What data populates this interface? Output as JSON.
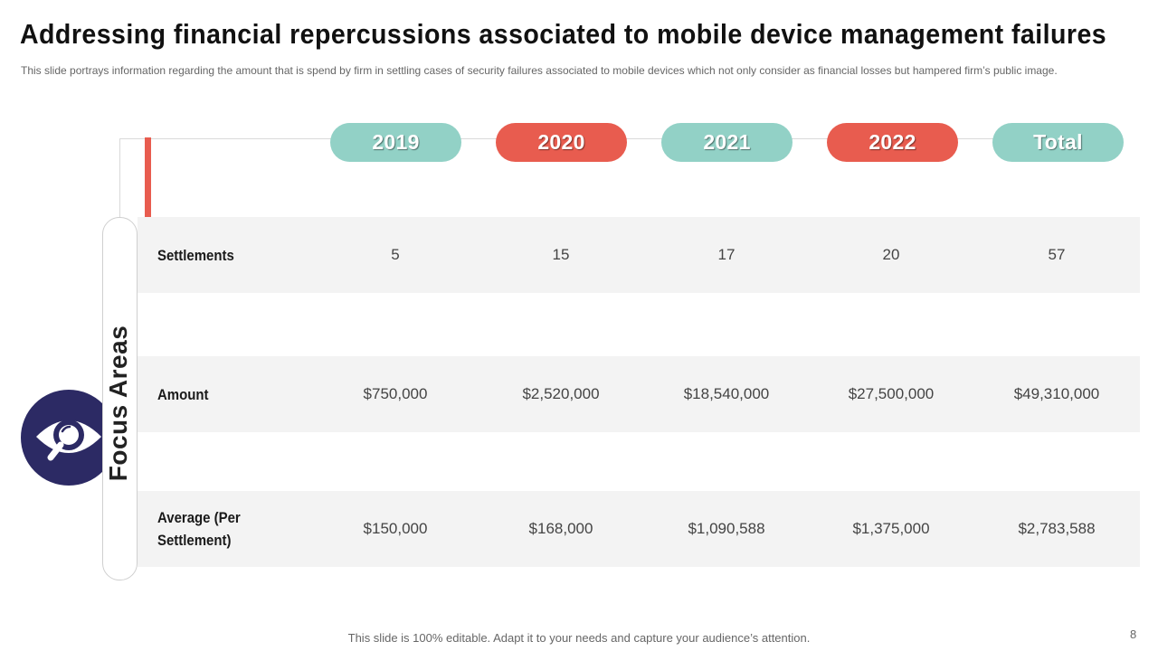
{
  "slide": {
    "title": "Addressing financial repercussions associated to mobile device management failures",
    "subtitle": "This slide portrays information regarding the amount that is spend by firm in settling cases of security failures associated to mobile devices which not only consider as financial losses but hampered firm’s public image.",
    "footer": "This slide is 100% editable. Adapt it to your needs and capture your audience’s attention.",
    "page_number": "8"
  },
  "colors": {
    "teal": "#92d1c6",
    "coral": "#e85c4f",
    "navy": "#2c2a64"
  },
  "focus": {
    "label": "Focus Areas",
    "icon": "eye-search-icon"
  },
  "columns": [
    "2019",
    "2020",
    "2021",
    "2022",
    "Total"
  ],
  "rows": [
    {
      "label": "Settlements",
      "values": [
        "5",
        "15",
        "17",
        "20",
        "57"
      ]
    },
    {
      "label": "Amount",
      "values": [
        "$750,000",
        "$2,520,000",
        "$18,540,000",
        "$27,500,000",
        "$49,310,000"
      ]
    },
    {
      "label": "Average (Per Settlement)",
      "values": [
        "$150,000",
        "$168,000",
        "$1,090,588",
        "$1,375,000",
        "$2,783,588"
      ]
    }
  ]
}
